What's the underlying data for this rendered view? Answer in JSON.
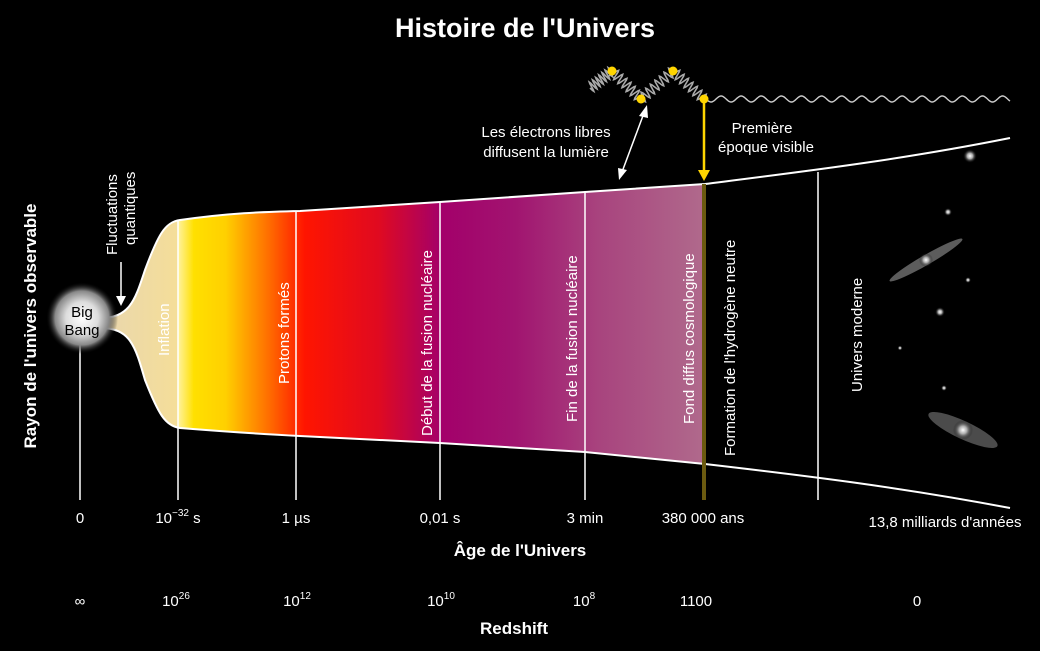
{
  "title": "Histoire de l'Univers",
  "y_axis_label": "Rayon de l'univers observable",
  "x_axis_label": "Âge de l'Univers",
  "redshift_label": "Redshift",
  "big_bang": [
    "Big",
    "Bang"
  ],
  "quantum_fluctuations": [
    "Fluctuations",
    "quantiques"
  ],
  "free_electrons": [
    "Les électrons libres",
    "diffusent la lumière"
  ],
  "first_visible": [
    "Première",
    "époque visible"
  ],
  "eras": [
    {
      "label": "Inflation"
    },
    {
      "label": "Protons formés"
    },
    {
      "label": "Début de la fusion nucléaire"
    },
    {
      "label": "Fin de la fusion nucléaire"
    },
    {
      "label": "Fond diffus cosmologique"
    },
    {
      "label": "Formation de l'hydrogène neutre"
    },
    {
      "label": "Univers moderne"
    }
  ],
  "age_ticks": [
    {
      "label": "0"
    },
    {
      "base": "10",
      "sup": "−32",
      "unit": " s"
    },
    {
      "label": "1 µs"
    },
    {
      "label": "0,01 s"
    },
    {
      "label": "3 min"
    },
    {
      "label": "380 000 ans"
    },
    {
      "label": "13,8 milliards d'années"
    }
  ],
  "redshift_ticks": [
    {
      "label": "∞"
    },
    {
      "base": "10",
      "sup": "26"
    },
    {
      "base": "10",
      "sup": "12"
    },
    {
      "base": "10",
      "sup": "10"
    },
    {
      "base": "10",
      "sup": "8"
    },
    {
      "label": "1100"
    },
    {
      "label": "0"
    }
  ],
  "colors": {
    "background": "#000000",
    "inflation": "#f0dba0",
    "yellow": "#ffd800",
    "red": "#ff1500",
    "magenta": "#a3006a",
    "mauve": "#b06a8c",
    "photon": "#ffd500"
  }
}
